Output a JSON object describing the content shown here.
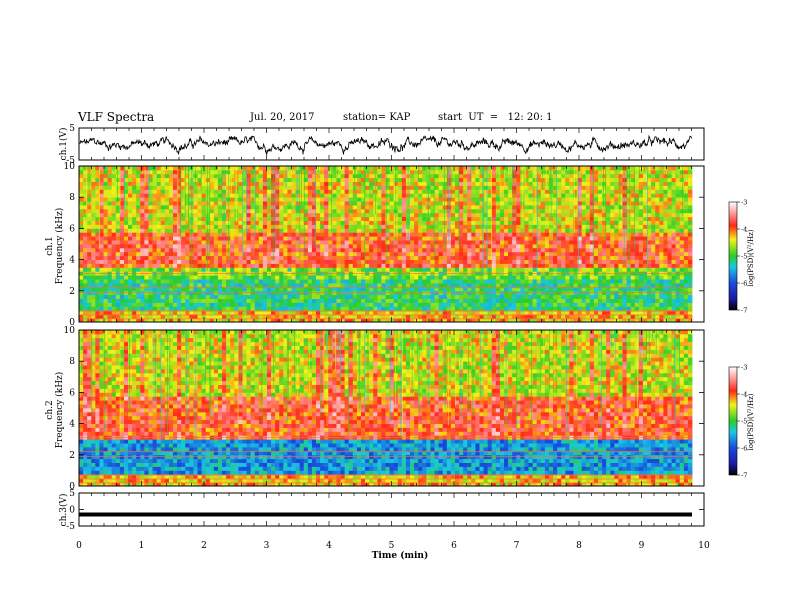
{
  "header": {
    "title": "VLF Spectra",
    "date": "Jul. 20, 2017",
    "station": "station= KAP",
    "start_ut": "start  UT  =   12: 20: 1"
  },
  "colors": {
    "spectrum_red": "#ff2a1a",
    "spectrum_yellow": "#f2f21a",
    "spectrum_green": "#2acc2a",
    "spectrum_cyan": "#1ac8e0",
    "spectrum_blue": "#1a2ad0",
    "trace": "#000000"
  },
  "chart_data": [
    {
      "id": "ch1-waveform",
      "type": "line",
      "ylabel": "ch.1(V)",
      "ylim": [
        -5,
        5
      ],
      "yticks": [
        "5",
        "-5"
      ],
      "xlim": [
        0,
        10
      ],
      "description_values": {
        "approx_mean": 0,
        "approx_range": [
          -3,
          2
        ]
      }
    },
    {
      "id": "ch1-spectrogram",
      "type": "heatmap",
      "ylabel_lines": [
        "ch.1",
        "Frequency  (kHz)"
      ],
      "ylim": [
        0,
        10
      ],
      "yticks": [
        "0",
        "2",
        "4",
        "6",
        "8",
        "10"
      ],
      "xlim": [
        0,
        9.8
      ],
      "bands": [
        {
          "from_khz": 0,
          "to_khz": 0.7,
          "level": -4.3
        },
        {
          "from_khz": 0.7,
          "to_khz": 2.8,
          "level": -5.1
        },
        {
          "from_khz": 2.8,
          "to_khz": 3.4,
          "level": -4.8
        },
        {
          "from_khz": 3.4,
          "to_khz": 5.8,
          "level": -3.9
        },
        {
          "from_khz": 5.8,
          "to_khz": 10,
          "level": -4.5
        }
      ],
      "colorbar": {
        "label": "log(PSD)(V²/Hz)",
        "ticks": [
          "-3",
          "-4",
          "-5",
          "-6",
          "-7"
        ],
        "range": [
          -7,
          -3
        ]
      }
    },
    {
      "id": "ch2-spectrogram",
      "type": "heatmap",
      "ylabel_lines": [
        "ch.2",
        "Frequency  (kHz)"
      ],
      "ylim": [
        0,
        10
      ],
      "yticks": [
        "0",
        "2",
        "4",
        "6",
        "8",
        "10"
      ],
      "xlim": [
        0,
        9.8
      ],
      "bands": [
        {
          "from_khz": 0,
          "to_khz": 0.7,
          "level": -4.3
        },
        {
          "from_khz": 0.7,
          "to_khz": 3.0,
          "level": -5.6
        },
        {
          "from_khz": 3.0,
          "to_khz": 5.8,
          "level": -3.9
        },
        {
          "from_khz": 5.8,
          "to_khz": 10,
          "level": -4.5
        }
      ],
      "colorbar": {
        "label": "log(PSD)(V²/Hz)",
        "ticks": [
          "-3",
          "-4",
          "-5",
          "-6",
          "-7"
        ],
        "range": [
          -7,
          -3
        ]
      }
    },
    {
      "id": "ch3-waveform",
      "type": "line",
      "ylabel": "ch.3(V)",
      "ylim": [
        -5,
        5
      ],
      "yticks": [
        "5",
        "0",
        "-5"
      ],
      "xlim": [
        0,
        10
      ],
      "description_values": {
        "constant_value": -1.5
      }
    }
  ],
  "x_axis": {
    "label": "Time  (min)",
    "ticks": [
      "0",
      "1",
      "2",
      "3",
      "4",
      "5",
      "6",
      "7",
      "8",
      "9",
      "10"
    ],
    "range": [
      0,
      10
    ]
  }
}
